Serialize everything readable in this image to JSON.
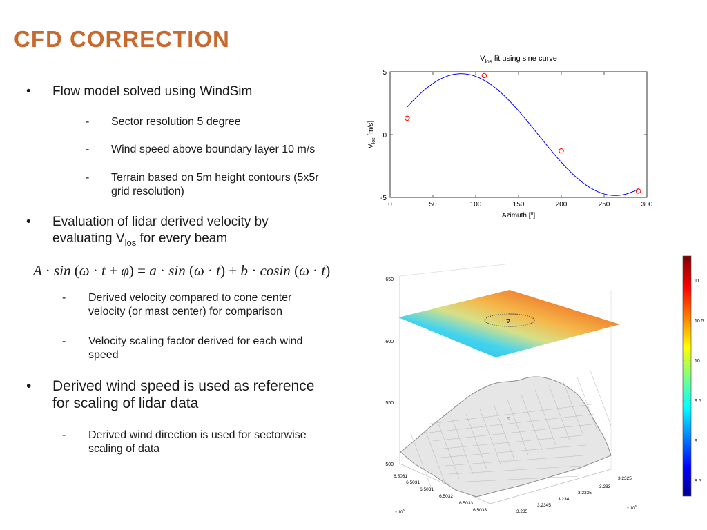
{
  "slide": {
    "title": "CFD CORRECTION",
    "bullet_symbol": "•",
    "dash_symbol": "-",
    "bullets": [
      {
        "text": "Flow model solved using WindSim"
      },
      {
        "text_line1": "Evaluation of lidar derived velocity by",
        "text_line2_prefix": "evaluating V",
        "text_line2_sub": "los",
        "text_line2_suffix": " for every beam"
      },
      {
        "text_line1": "Derived wind speed is used as reference",
        "text_line2": "for scaling of lidar data"
      }
    ],
    "subs": [
      {
        "text": "Sector resolution 5 degree"
      },
      {
        "text": "Wind speed above boundary layer 10 m/s"
      },
      {
        "text_line1": "Terrain based on 5m height contours (5x5r",
        "text_line2": "grid resolution)"
      },
      {
        "text_line1": "Derived velocity compared to cone center",
        "text_line2": "velocity (or mast center) for comparison"
      },
      {
        "text_line1": "Velocity scaling factor derived for each wind",
        "text_line2": "speed"
      },
      {
        "text_line1": "Derived wind direction is used for sectorwise",
        "text_line2": "scaling of data"
      }
    ],
    "formula": {
      "A": "A",
      "sin": "sin",
      "cosin": "cosin",
      "omega": "ω",
      "t": "t",
      "phi": "φ",
      "a": "a",
      "b": "b",
      "dot": "·",
      "plus": "+",
      "eq": "=",
      "lp": "(",
      "rp": ")"
    }
  },
  "chart_data": [
    {
      "type": "line",
      "title_prefix": "V",
      "title_sub": "los",
      "title_suffix": " fit using sine curve",
      "xlabel_prefix": "Azimuth [",
      "xlabel_sup": "o",
      "xlabel_suffix": "]",
      "ylabel_prefix": "V",
      "ylabel_sub": "los",
      "ylabel_suffix": " [m/s]",
      "xlim": [
        0,
        300
      ],
      "ylim": [
        -5,
        5
      ],
      "xticks": [
        0,
        50,
        100,
        150,
        200,
        250,
        300
      ],
      "yticks": [
        -5,
        0,
        5
      ],
      "fit": {
        "amplitude": 4.85,
        "phase_deg": 7,
        "x_range": [
          20,
          290
        ]
      },
      "points": [
        {
          "x": 20,
          "y": 1.3
        },
        {
          "x": 110,
          "y": 4.7
        },
        {
          "x": 200,
          "y": -1.3
        },
        {
          "x": 290,
          "y": -4.5
        }
      ],
      "line_color": "#0000ff",
      "marker_color": "#ff0000"
    },
    {
      "type": "heatmap",
      "z_ticks": [
        "650",
        "600",
        "550",
        "500"
      ],
      "x_ticks": [
        "6.5031",
        "6.5031",
        "6.5031",
        "6.5032",
        "6.5033",
        "6.5033"
      ],
      "y_ticks": [
        "3.2325",
        "3.233",
        "3.2335",
        "3.234",
        "3.2345",
        "3.235"
      ],
      "x_exponent_base": "x 10",
      "x_exponent": "6",
      "y_exponent_base": "x 10",
      "y_exponent": "6",
      "colorbar_ticks": [
        "11",
        "10.5",
        "10",
        "9.5",
        "9",
        "8.5"
      ],
      "colorbar_range": [
        8.3,
        11.3
      ]
    }
  ]
}
